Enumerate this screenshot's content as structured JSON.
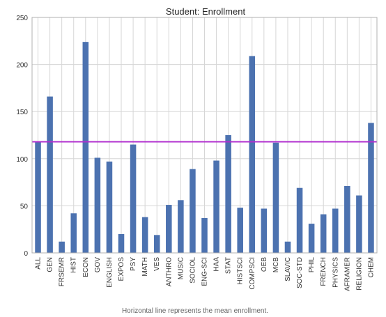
{
  "caption": "Horizontal line represents the mean enrollment.",
  "chart_data": {
    "type": "bar",
    "title": "Student: Enrollment",
    "xlabel": "",
    "ylabel": "",
    "ylim": [
      0,
      250
    ],
    "yticks": [
      "0",
      "50",
      "100",
      "150",
      "200",
      "250"
    ],
    "grid": true,
    "categories": [
      "ALL",
      "GEN",
      "FRSEMR",
      "HIST",
      "ECON",
      "GOV",
      "ENGLISH",
      "EXPOS",
      "PSY",
      "MATH",
      "VES",
      "ANTHRO",
      "MUSIC",
      "SOCIOL",
      "ENG-SCI",
      "HAA",
      "STAT",
      "HISTSCI",
      "COMPSCI",
      "OEB",
      "MCB",
      "SLAVIC",
      "SOC-STD",
      "PHIL",
      "FRENCH",
      "PHYSICS",
      "AFRAMER",
      "RELIGION",
      "CHEM"
    ],
    "values": [
      118,
      166,
      12,
      42,
      224,
      101,
      97,
      20,
      115,
      38,
      19,
      51,
      56,
      89,
      37,
      98,
      125,
      48,
      209,
      47,
      117,
      12,
      69,
      31,
      41,
      47,
      71,
      61,
      138
    ],
    "mean_line": 118,
    "colors": {
      "bar": "#4c72b0",
      "mean_line": "#b12fcf",
      "grid": "#d6d6d6",
      "axis": "#b0b0b0"
    }
  }
}
